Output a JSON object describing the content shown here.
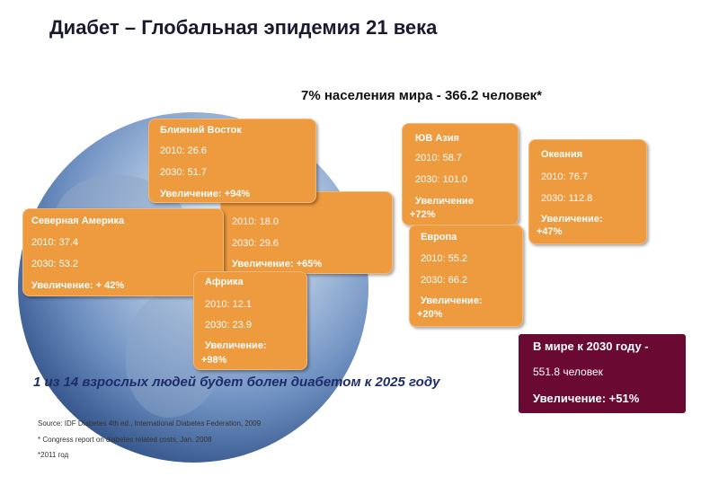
{
  "title": "Диабет – Глобальная эпидемия 21 века",
  "subtitle": "7% населения мира - 366.2 человек*",
  "regions": {
    "middle_east": {
      "name": "Ближний Восток",
      "y2010": "2010: 26.6",
      "y2030": "2030: 51.7",
      "increase": "Увеличение: +94%"
    },
    "north_america": {
      "name": "Северная Америка",
      "y2010": "2010: 37.4",
      "y2030": "2030: 53.2",
      "increase": "Увеличение: + 42%"
    },
    "south_america": {
      "y2010": "2010: 18.0",
      "y2030": "2030: 29.6",
      "increase": "Увеличение: +65%"
    },
    "africa": {
      "name": "Африка",
      "y2010": "2010: 12.1",
      "y2030": "2030: 23.9",
      "increase_1": "Увеличение:",
      "increase_2": "+98%"
    },
    "se_asia": {
      "name": "ЮВ Азия",
      "y2010": "2010: 58.7",
      "y2030": "2030: 101.0",
      "increase_1": "Увеличение",
      "increase_2": "+72%"
    },
    "oceania": {
      "name": "Океания",
      "y2010": "2010: 76.7",
      "y2030": "2030: 112.8",
      "increase_1": "Увеличение:",
      "increase_2": "+47%"
    },
    "europe": {
      "name": "Европа",
      "y2010": "2010: 55.2",
      "y2030": "2030: 66.2",
      "increase_1": "Увеличение:",
      "increase_2": "+20%"
    }
  },
  "world": {
    "headline": "В мире к 2030 году -",
    "value": "551.8 человек",
    "increase": "Увеличение: +51%"
  },
  "note": "1 из 14 взрослых людей будет болен диабетом к 2025 году",
  "sources": [
    "Source: IDF Diabetes 4th ed., International Diabetes Federation, 2009",
    "* Congress report on diabetes related costs, Jan. 2008",
    "*2011 год"
  ],
  "colors": {
    "box": "#ee9a3e",
    "world_box": "#6a0a33",
    "title": "#1a1a2e"
  }
}
